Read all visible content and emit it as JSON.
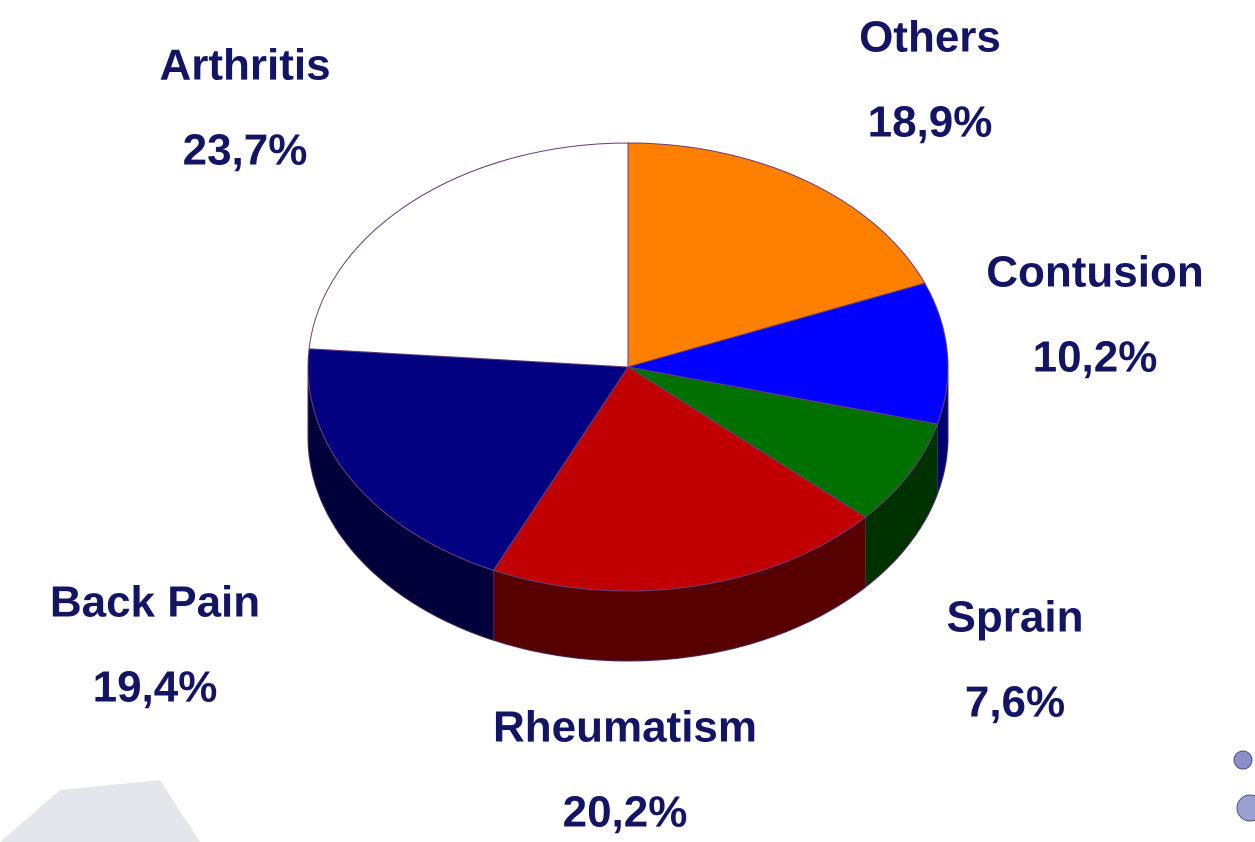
{
  "chart_data": {
    "type": "pie",
    "categories": [
      "Others",
      "Contusion",
      "Sprain",
      "Rheumatism",
      "Back Pain",
      "Arthritis"
    ],
    "values": [
      18.9,
      10.2,
      7.6,
      20.2,
      19.4,
      23.7
    ],
    "value_labels": [
      "18,9%",
      "10,2%",
      "7,6%",
      "20,2%",
      "19,4%",
      "23,7%"
    ],
    "colors": [
      "#ff8000",
      "#0000ff",
      "#007000",
      "#c00000",
      "#000080",
      "#ffffff"
    ]
  }
}
